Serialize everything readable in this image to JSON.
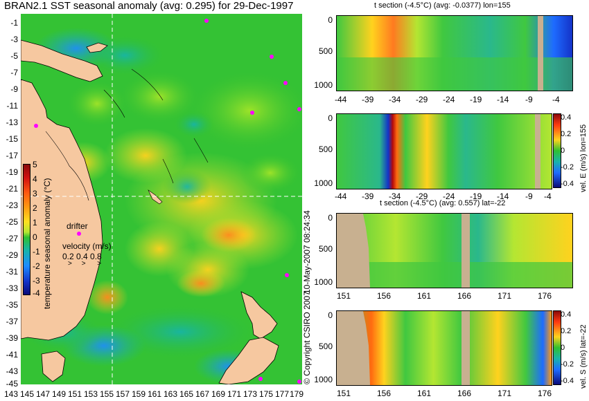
{
  "colors": {
    "land": "#f6c8a0",
    "land_section": "#c8b090",
    "base_green": "#30c030",
    "neutral": "#66dd33",
    "marker": "#ff00ff"
  },
  "map": {
    "title": "BRAN2.1 SST seasonal anomaly (avg: 0.295) for 29-Dec-1997",
    "lat_ticks": [
      "-1",
      "-3",
      "-5",
      "-7",
      "-9",
      "-11",
      "-13",
      "-15",
      "-17",
      "-19",
      "-21",
      "-23",
      "-25",
      "-27",
      "-29",
      "-31",
      "-33",
      "-35",
      "-37",
      "-39",
      "-41",
      "-43",
      "-45"
    ],
    "lon_ticks": [
      "143",
      "145",
      "147",
      "149",
      "151",
      "153",
      "155",
      "157",
      "159",
      "161",
      "163",
      "165",
      "167",
      "169",
      "171",
      "173",
      "175",
      "177",
      "179"
    ],
    "colorbar_ticks": [
      "5",
      "4",
      "3",
      "2",
      "1",
      "0",
      "-1",
      "-2",
      "-3",
      "-4"
    ],
    "colorbar_label": "temperature seasonal anomaly (°C)",
    "drifter_label": "drifter",
    "velocity_label": "velocity (m/s)",
    "velocity_scale": "0.2 0.4 0.8",
    "section_lon": 155,
    "section_lat": -22
  },
  "copyright": "© Copyright CSIRO 2007",
  "date_stamp": "10-May-2007 08:24:34",
  "panels": {
    "p1": {
      "title": "t section (-4.5°C) (avg: -0.0377) lon=155",
      "y_ticks": [
        "0",
        "500",
        "1000"
      ],
      "x_ticks": [
        "-44",
        "-39",
        "-34",
        "-29",
        "-24",
        "-19",
        "-14",
        "-9",
        "-4"
      ]
    },
    "p2": {
      "y_ticks": [
        "0",
        "500",
        "1000"
      ],
      "x_ticks": [
        "-44",
        "-39",
        "-34",
        "-29",
        "-24",
        "-19",
        "-14",
        "-9",
        "-4"
      ],
      "cb_ticks": [
        "0.4",
        "0.2",
        "0",
        "-0.2",
        "-0.4"
      ],
      "cb_label": "vel. E (m/s) lon=155"
    },
    "p3": {
      "title": "t section (-4.5°C) (avg: 0.557) lat=-22",
      "y_ticks": [
        "0",
        "500",
        "1000"
      ],
      "x_ticks": [
        "151",
        "156",
        "161",
        "166",
        "171",
        "176"
      ]
    },
    "p4": {
      "y_ticks": [
        "0",
        "500",
        "1000"
      ],
      "x_ticks": [
        "151",
        "156",
        "161",
        "166",
        "171",
        "176"
      ],
      "cb_ticks": [
        "0.4",
        "0.2",
        "0",
        "-0.2",
        "-0.4"
      ],
      "cb_label": "vel. S (m/s) lat=-22"
    }
  },
  "chart_data": [
    {
      "type": "heatmap",
      "title": "BRAN2.1 SST seasonal anomaly (avg: 0.295) for 29-Dec-1997",
      "xlabel": "",
      "ylabel": "",
      "xlim": [
        143,
        179
      ],
      "ylim": [
        -45,
        -1
      ],
      "colorbar": {
        "label": "temperature seasonal anomaly (°C)",
        "range": [
          -4,
          5
        ]
      },
      "avg": 0.295
    },
    {
      "type": "heatmap",
      "title": "t section (-4.5°C) (avg: -0.0377) lon=155",
      "x_range": [
        -44,
        -1
      ],
      "depth_range": [
        0,
        1000
      ],
      "avg": -0.0377
    },
    {
      "type": "heatmap",
      "title": "vel. E (m/s) lon=155",
      "x_range": [
        -44,
        -1
      ],
      "depth_range": [
        0,
        1000
      ],
      "colorbar_range": [
        -0.4,
        0.4
      ]
    },
    {
      "type": "heatmap",
      "title": "t section (-4.5°C) (avg: 0.557) lat=-22",
      "x_range": [
        151,
        179
      ],
      "depth_range": [
        0,
        1000
      ],
      "avg": 0.557
    },
    {
      "type": "heatmap",
      "title": "vel. S (m/s) lat=-22",
      "x_range": [
        151,
        179
      ],
      "depth_range": [
        0,
        1000
      ],
      "colorbar_range": [
        -0.4,
        0.4
      ]
    }
  ]
}
